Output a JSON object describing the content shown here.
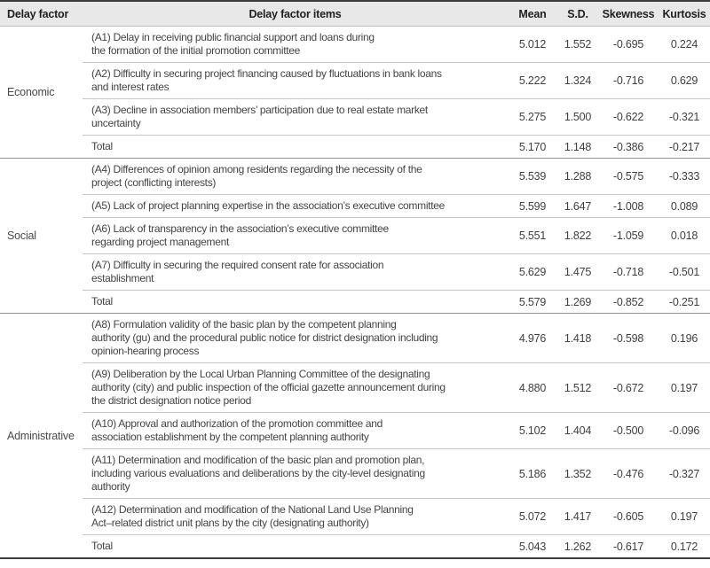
{
  "colors": {
    "header_background": "#e8e8e8",
    "rule_dark": "#3c3c3c",
    "rule_section": "#8f8f8f",
    "rule_row": "#c6c6c6",
    "text": "#444444"
  },
  "table": {
    "headers": {
      "factor": "Delay factor",
      "items": "Delay factor items",
      "mean": "Mean",
      "sd": "S.D.",
      "skewness": "Skewness",
      "kurtosis": "Kurtosis"
    },
    "sections": [
      {
        "factor": "Economic",
        "rows": [
          {
            "item": "(A1) Delay in receiving public financial support and loans during\nthe formation of the initial promotion committee",
            "mean": "5.012",
            "sd": "1.552",
            "skewness": "-0.695",
            "kurtosis": "0.224"
          },
          {
            "item": "(A2) Difficulty in securing project financing caused by fluctuations in bank loans\nand interest rates",
            "mean": "5.222",
            "sd": "1.324",
            "skewness": "-0.716",
            "kurtosis": "0.629"
          },
          {
            "item": "(A3) Decline in association members’ participation due to real estate market\nuncertainty",
            "mean": "5.275",
            "sd": "1.500",
            "skewness": "-0.622",
            "kurtosis": "-0.321"
          },
          {
            "item": "Total",
            "mean": "5.170",
            "sd": "1.148",
            "skewness": "-0.386",
            "kurtosis": "-0.217"
          }
        ]
      },
      {
        "factor": "Social",
        "rows": [
          {
            "item": "(A4) Differences of opinion among residents regarding the necessity of the\nproject (conflicting interests)",
            "mean": "5.539",
            "sd": "1.288",
            "skewness": "-0.575",
            "kurtosis": "-0.333"
          },
          {
            "item": "(A5) Lack of project planning expertise in the association’s executive committee",
            "mean": "5.599",
            "sd": "1.647",
            "skewness": "-1.008",
            "kurtosis": "0.089"
          },
          {
            "item": "(A6) Lack of transparency in the association’s executive committee\nregarding project management",
            "mean": "5.551",
            "sd": "1.822",
            "skewness": "-1.059",
            "kurtosis": "0.018"
          },
          {
            "item": "(A7) Difficulty in securing the required consent rate for association\nestablishment",
            "mean": "5.629",
            "sd": "1.475",
            "skewness": "-0.718",
            "kurtosis": "-0.501"
          },
          {
            "item": "Total",
            "mean": "5.579",
            "sd": "1.269",
            "skewness": "-0.852",
            "kurtosis": "-0.251"
          }
        ]
      },
      {
        "factor": "Administrative",
        "rows": [
          {
            "item": "(A8) Formulation validity of the basic plan by the competent planning\nauthority (gu) and the procedural public notice for district designation including\nopinion-hearing process",
            "mean": "4.976",
            "sd": "1.418",
            "skewness": "-0.598",
            "kurtosis": "0.196"
          },
          {
            "item": "(A9) Deliberation by the Local Urban Planning Committee of the designating\nauthority (city) and public inspection of the official gazette announcement during\nthe district designation notice period",
            "mean": "4.880",
            "sd": "1.512",
            "skewness": "-0.672",
            "kurtosis": "0.197"
          },
          {
            "item": "(A10) Approval and authorization of the promotion committee and\nassociation establishment by the competent planning authority",
            "mean": "5.102",
            "sd": "1.404",
            "skewness": "-0.500",
            "kurtosis": "-0.096"
          },
          {
            "item": "(A11) Determination and modification of the basic plan and promotion plan,\nincluding various evaluations and deliberations by the city-level designating\nauthority",
            "mean": "5.186",
            "sd": "1.352",
            "skewness": "-0.476",
            "kurtosis": "-0.327"
          },
          {
            "item": "(A12) Determination and modification of the National Land Use Planning\nAct–related district unit plans by the city (designating authority)",
            "mean": "5.072",
            "sd": "1.417",
            "skewness": "-0.605",
            "kurtosis": "0.197"
          },
          {
            "item": "Total",
            "mean": "5.043",
            "sd": "1.262",
            "skewness": "-0.617",
            "kurtosis": "0.172"
          }
        ]
      }
    ]
  }
}
